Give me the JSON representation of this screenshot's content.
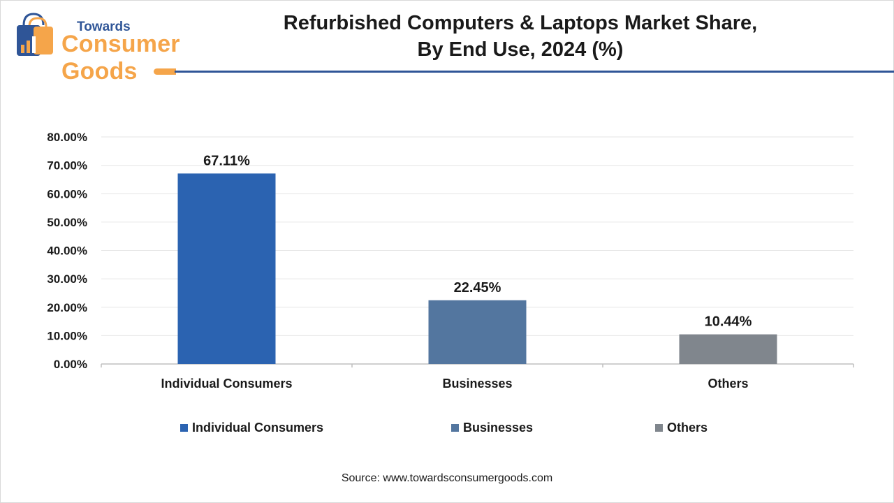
{
  "brand": {
    "line1": "Towards",
    "line2": "Consumer Goods"
  },
  "header": {
    "title_line1": "Refurbished Computers & Laptops Market Share,",
    "title_line2": "By End Use, 2024 (%)"
  },
  "colors": {
    "primary": "#2f5597",
    "accent": "#f5a54a"
  },
  "chart_data": {
    "type": "bar",
    "title": "Refurbished Computers & Laptops Market Share, By End Use, 2024 (%)",
    "categories": [
      "Individual Consumers",
      "Businesses",
      "Others"
    ],
    "values": [
      67.11,
      22.45,
      10.44
    ],
    "data_labels": [
      "67.11%",
      "22.45%",
      "10.44%"
    ],
    "bar_colors": [
      "#2b63b1",
      "#53769f",
      "#80868d"
    ],
    "ylim": [
      0,
      80
    ],
    "yticks": [
      0,
      10,
      20,
      30,
      40,
      50,
      60,
      70,
      80
    ],
    "ytick_labels": [
      "0.00%",
      "10.00%",
      "20.00%",
      "30.00%",
      "40.00%",
      "50.00%",
      "60.00%",
      "70.00%",
      "80.00%"
    ],
    "grid": true,
    "legend_position": "bottom",
    "xlabel": "",
    "ylabel": ""
  },
  "legend": {
    "items": [
      {
        "label": "Individual Consumers",
        "color": "#2b63b1"
      },
      {
        "label": "Businesses",
        "color": "#53769f"
      },
      {
        "label": "Others",
        "color": "#80868d"
      }
    ]
  },
  "source": {
    "prefix": "Source: ",
    "url": "www.towardsconsumergoods.com"
  }
}
